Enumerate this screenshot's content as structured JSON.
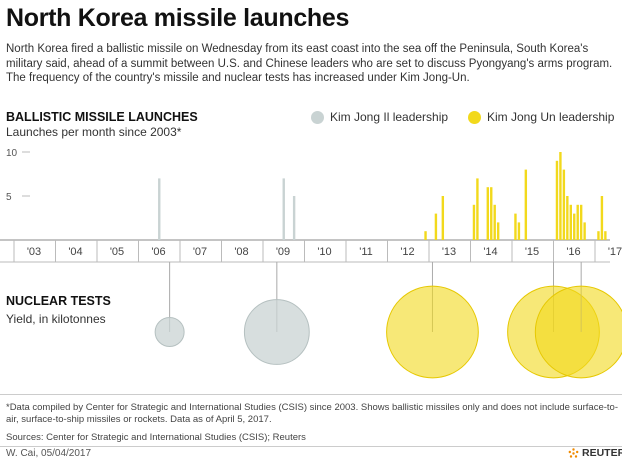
{
  "header": {
    "title": "North Korea missile launches",
    "intro": "North Korea fired a ballistic missile on Wednesday from its east coast into the sea off the Peninsula, South Korea's military said, ahead of a summit between U.S. and Chinese leaders who are set to discuss Pyongyang's arms program. The frequency of the country's missile and nuclear tests has increased under Kim Jong-Un."
  },
  "legend": {
    "kim_jong_il": "Kim Jong Il leadership",
    "kim_jong_un": "Kim Jong Un leadership"
  },
  "colors": {
    "kim_jong_il": "#c9d3d3",
    "kim_jong_un": "#f2d91c",
    "axis": "#888888"
  },
  "chart_data": [
    {
      "type": "bar",
      "title": "BALLISTIC MISSILE LAUNCHES",
      "subtitle": "Launches per month since 2003*",
      "ylim": [
        0,
        10
      ],
      "yticks": [
        5,
        10
      ],
      "xlim": [
        2003,
        2017.3
      ],
      "xticks": [
        "'03",
        "'04",
        "'05",
        "'06",
        "'07",
        "'08",
        "'09",
        "'10",
        "'11",
        "'12",
        "'13",
        "'14",
        "'15",
        "'16",
        "'17"
      ],
      "series": [
        {
          "name": "Kim Jong Il leadership",
          "points": [
            {
              "date": "2006-07",
              "value": 7
            },
            {
              "date": "2009-07",
              "value": 7
            },
            {
              "date": "2009-10",
              "value": 5
            }
          ]
        },
        {
          "name": "Kim Jong Un leadership",
          "points": [
            {
              "date": "2012-12",
              "value": 1
            },
            {
              "date": "2013-03",
              "value": 3
            },
            {
              "date": "2013-05",
              "value": 5
            },
            {
              "date": "2014-02",
              "value": 4
            },
            {
              "date": "2014-03",
              "value": 7
            },
            {
              "date": "2014-06",
              "value": 6
            },
            {
              "date": "2014-07",
              "value": 6
            },
            {
              "date": "2014-08",
              "value": 4
            },
            {
              "date": "2014-09",
              "value": 2
            },
            {
              "date": "2015-02",
              "value": 3
            },
            {
              "date": "2015-03",
              "value": 2
            },
            {
              "date": "2015-05",
              "value": 8
            },
            {
              "date": "2016-02",
              "value": 9
            },
            {
              "date": "2016-03",
              "value": 10
            },
            {
              "date": "2016-04",
              "value": 8
            },
            {
              "date": "2016-05",
              "value": 5
            },
            {
              "date": "2016-06",
              "value": 4
            },
            {
              "date": "2016-07",
              "value": 3
            },
            {
              "date": "2016-08",
              "value": 4
            },
            {
              "date": "2016-09",
              "value": 4
            },
            {
              "date": "2016-10",
              "value": 2
            },
            {
              "date": "2017-02",
              "value": 1
            },
            {
              "date": "2017-03",
              "value": 5
            },
            {
              "date": "2017-04",
              "value": 1
            }
          ]
        }
      ]
    },
    {
      "type": "scatter",
      "title": "NUCLEAR TESTS",
      "subtitle": "Yield, in kilotonnes",
      "series": [
        {
          "name": "Kim Jong Il leadership",
          "points": [
            {
              "date": "2006-10",
              "yield_kt": 1
            },
            {
              "date": "2009-05",
              "yield_kt": 5
            }
          ]
        },
        {
          "name": "Kim Jong Un leadership",
          "points": [
            {
              "date": "2013-02",
              "yield_kt": 10
            },
            {
              "date": "2016-01",
              "yield_kt": 10
            },
            {
              "date": "2016-09",
              "yield_kt": 10
            }
          ]
        }
      ]
    }
  ],
  "footer": {
    "note": "*Data compiled by Center for Strategic and International Studies (CSIS) since 2003. Shows ballistic missiles only and does not include surface-to-air, surface-to-ship missiles or rockets. Data as of April 5, 2017.",
    "sources": "Sources: Center for Strategic and International Studies (CSIS); Reuters",
    "credit": "W. Cai, 05/04/2017",
    "brand": "REUTERS"
  }
}
